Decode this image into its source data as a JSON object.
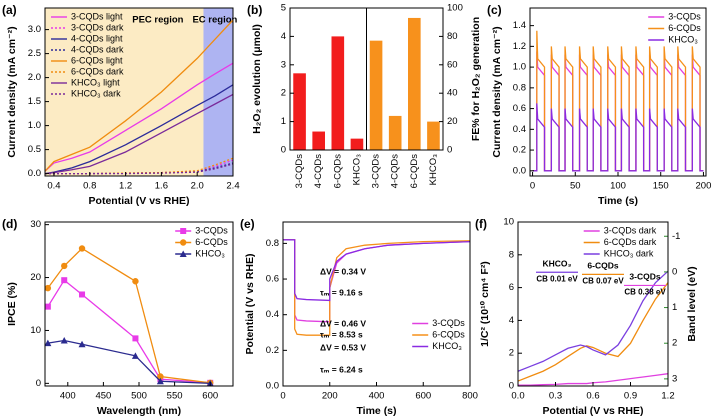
{
  "chart_data": [
    {
      "type": "line",
      "label": "(a)",
      "xlabel": "Potential (V vs RHE)",
      "ylabel": "Current density (mA cm⁻²)",
      "xlim": [
        0.3,
        2.4
      ],
      "ylim": [
        -0.05,
        3.45
      ],
      "xticks": [
        0.4,
        0.8,
        1.2,
        1.6,
        {
          "value": 2,
          "label": "2.0"
        },
        2.4
      ],
      "yticks": [
        {
          "value": 0,
          "label": "0.0"
        },
        0.5,
        {
          "value": 1,
          "label": "1.0"
        },
        1.5,
        {
          "value": 2,
          "label": "2.0"
        },
        2.5,
        {
          "value": 3,
          "label": "3.0"
        }
      ],
      "regions": [
        {
          "label": "PEC region",
          "x": [
            0.3,
            2.07
          ],
          "color": "#fcebc4",
          "text_color": "#e8392a"
        },
        {
          "label": "EC region",
          "x": [
            2.07,
            2.4
          ],
          "color": "#aeb4f2",
          "text_color": "#3a3aa0"
        }
      ],
      "legend": "upper left",
      "x": [
        0.3,
        0.4,
        0.6,
        0.8,
        1.2,
        1.6,
        2.0,
        2.2,
        2.4
      ],
      "series": [
        {
          "name": "3-CQDs light",
          "color": "#e83ae8",
          "values": [
            0.05,
            0.22,
            0.32,
            0.45,
            0.9,
            1.35,
            1.85,
            2.08,
            2.3
          ]
        },
        {
          "name": "3-CQDs dark",
          "color": "#e83ae8",
          "style": "dotted",
          "values": [
            0,
            0,
            0,
            0,
            0.01,
            0.02,
            0.05,
            0.15,
            0.28
          ]
        },
        {
          "name": "4-CQDs light",
          "color": "#2b2b9a",
          "values": [
            0,
            0.03,
            0.12,
            0.25,
            0.6,
            1.0,
            1.42,
            1.62,
            1.85
          ]
        },
        {
          "name": "4-CQDs dark",
          "color": "#2b2b9a",
          "style": "dotted",
          "values": [
            0,
            0,
            0,
            0,
            0.01,
            0.02,
            0.04,
            0.12,
            0.22
          ]
        },
        {
          "name": "6-CQDs light",
          "color": "#f08c10",
          "values": [
            0.05,
            0.25,
            0.4,
            0.55,
            1.1,
            1.7,
            2.4,
            2.8,
            3.2
          ]
        },
        {
          "name": "6-CQDs dark",
          "color": "#f08c10",
          "style": "dotted",
          "values": [
            0,
            0,
            0,
            0,
            0.01,
            0.02,
            0.06,
            0.18,
            0.32
          ]
        },
        {
          "name": "KHCO₃ light",
          "color": "#7a2a9a",
          "values": [
            0,
            0.02,
            0.08,
            0.15,
            0.45,
            0.85,
            1.25,
            1.45,
            1.65
          ]
        },
        {
          "name": "KHCO₃ dark",
          "color": "#7a2a9a",
          "style": "dotted",
          "values": [
            0,
            0,
            0,
            0,
            0,
            0.01,
            0.03,
            0.1,
            0.2
          ]
        }
      ]
    },
    {
      "type": "bar",
      "label": "(b)",
      "ylabel": "H₂O₂ evolution (μmol)",
      "y2label": "FE% for H₂O₂ generation",
      "categories": [
        "3-CQDs",
        "4-CQDs",
        "6-CQDs",
        "KHCO₃",
        "3-CQDs",
        "4-CQDs",
        "6-CQDs",
        "KHCO₃"
      ],
      "ylim": [
        0,
        5
      ],
      "yticks": [
        0,
        1,
        2,
        3,
        4,
        5
      ],
      "y2lim": [
        0,
        100
      ],
      "y2ticks": [
        0,
        20,
        40,
        60,
        80,
        100
      ],
      "series": [
        {
          "color": "#f21d1d",
          "values": [
            2.7,
            0.65,
            4.0,
            0.4,
            null,
            null,
            null,
            null
          ]
        },
        {
          "color": "#f7911c",
          "axis": "y2",
          "values": [
            null,
            null,
            null,
            null,
            77,
            24,
            93,
            20
          ]
        }
      ]
    },
    {
      "type": "line",
      "label": "(c)",
      "xlabel": "Time (s)",
      "ylabel": "Current density (mA cm⁻²)",
      "xlim": [
        -3,
        203
      ],
      "ylim": [
        -0.05,
        1.57
      ],
      "xticks": [
        0,
        50,
        100,
        150,
        200
      ],
      "yticks": [
        {
          "value": 0,
          "label": "0.0"
        },
        0.2,
        0.4,
        0.6,
        0.8,
        {
          "value": 1,
          "label": "1.0"
        },
        1.2,
        1.4
      ],
      "legend": "upper right",
      "x": [
        0,
        5,
        5,
        6,
        14,
        14,
        22,
        22,
        23,
        31,
        31,
        38,
        38,
        39,
        47,
        47,
        55,
        55,
        56,
        64,
        64,
        71,
        71,
        72,
        80,
        80,
        88,
        88,
        89,
        97,
        97,
        104,
        104,
        105,
        113,
        113,
        121,
        121,
        122,
        130,
        130,
        137,
        137,
        138,
        146,
        146,
        154,
        154,
        155,
        163,
        163,
        170,
        170,
        171,
        179,
        179,
        187,
        187,
        188,
        196,
        196,
        200
      ],
      "series": [
        {
          "name": "3-CQDs",
          "color": "#e040e0",
          "values": [
            0,
            0,
            1.15,
            1.0,
            0.92,
            0,
            0,
            1.12,
            1.0,
            0.92,
            0,
            0,
            1.12,
            1.0,
            0.92,
            0,
            0,
            1.12,
            1.0,
            0.92,
            0,
            0,
            1.12,
            1.0,
            0.92,
            0,
            0,
            1.12,
            1.0,
            0.92,
            0,
            0,
            1.12,
            1.0,
            0.92,
            0,
            0,
            1.12,
            1.0,
            0.92,
            0,
            0,
            1.12,
            1.0,
            0.92,
            0,
            0,
            1.12,
            1.0,
            0.92,
            0,
            0,
            1.12,
            1.0,
            0.92,
            0,
            0,
            1.12,
            1.0,
            0.92,
            0,
            0
          ]
        },
        {
          "name": "6-CQDs",
          "color": "#f5901a",
          "values": [
            0,
            0,
            1.35,
            1.08,
            1.0,
            0,
            0,
            1.2,
            1.08,
            1.0,
            0,
            0,
            1.2,
            1.08,
            1.0,
            0,
            0,
            1.2,
            1.08,
            1.0,
            0,
            0,
            1.2,
            1.08,
            1.0,
            0,
            0,
            1.2,
            1.08,
            1.0,
            0,
            0,
            1.2,
            1.08,
            1.0,
            0,
            0,
            1.2,
            1.08,
            1.0,
            0,
            0,
            1.2,
            1.08,
            1.0,
            0,
            0,
            1.2,
            1.08,
            1.0,
            0,
            0,
            1.2,
            1.08,
            1.0,
            0,
            0,
            1.2,
            1.08,
            1.0,
            0,
            0
          ]
        },
        {
          "name": "KHCO₃",
          "color": "#8a2be2",
          "values": [
            0,
            0,
            0.65,
            0.5,
            0.42,
            0,
            0,
            0.6,
            0.5,
            0.42,
            0,
            0,
            0.6,
            0.5,
            0.42,
            0,
            0,
            0.6,
            0.5,
            0.42,
            0,
            0,
            0.6,
            0.5,
            0.42,
            0,
            0,
            0.6,
            0.5,
            0.42,
            0,
            0,
            0.6,
            0.5,
            0.42,
            0,
            0,
            0.6,
            0.5,
            0.42,
            0,
            0,
            0.6,
            0.5,
            0.42,
            0,
            0,
            0.6,
            0.5,
            0.42,
            0,
            0,
            0.6,
            0.5,
            0.42,
            0,
            0,
            0.6,
            0.5,
            0.42,
            0,
            0
          ]
        }
      ]
    },
    {
      "type": "line",
      "label": "(d)",
      "xlabel": "Wavelength (nm)",
      "ylabel": "IPCE (%)",
      "xlim": [
        368,
        632
      ],
      "ylim": [
        -0.5,
        30.5
      ],
      "xticks": [
        400,
        450,
        500,
        550,
        600
      ],
      "yticks": [
        0,
        10,
        20,
        30
      ],
      "legend": "upper right",
      "x": [
        372,
        395,
        420,
        495,
        530,
        600
      ],
      "series": [
        {
          "name": "3-CQDs",
          "color": "#e83ae8",
          "marker": "square",
          "values": [
            14.5,
            19.5,
            16.8,
            8.5,
            0.8,
            0.1
          ]
        },
        {
          "name": "6-CQDs",
          "color": "#f08c10",
          "marker": "circle",
          "values": [
            18,
            22.2,
            25.5,
            19.3,
            1.3,
            0.1
          ]
        },
        {
          "name": "KHCO₃",
          "color": "#2b2b8f",
          "marker": "triangle",
          "values": [
            7.6,
            8.1,
            7.4,
            5.2,
            0.4,
            0
          ]
        }
      ]
    },
    {
      "type": "line",
      "label": "(e)",
      "xlabel": "Time (s)",
      "ylabel": "Potential (V vs RHE)",
      "xlim": [
        0,
        800
      ],
      "ylim": [
        0,
        0.92
      ],
      "xticks": [
        0,
        200,
        400,
        600,
        800
      ],
      "yticks": [
        {
          "value": 0,
          "label": "0.0"
        },
        0.2,
        0.4,
        0.6,
        0.8
      ],
      "legend": "lower right",
      "x": [
        0,
        50,
        50,
        60,
        100,
        200,
        200,
        230,
        270,
        350,
        450,
        600,
        800
      ],
      "series": [
        {
          "name": "3-CQDs",
          "color": "#e040e0",
          "values": [
            0.82,
            0.82,
            0.4,
            0.37,
            0.365,
            0.36,
            0.55,
            0.69,
            0.74,
            0.77,
            0.79,
            0.8,
            0.81
          ]
        },
        {
          "name": "6-CQDs",
          "color": "#f5901a",
          "values": [
            0.82,
            0.82,
            0.32,
            0.29,
            0.285,
            0.285,
            0.55,
            0.72,
            0.77,
            0.79,
            0.8,
            0.81,
            0.815
          ]
        },
        {
          "name": "KHCO₃",
          "color": "#8a2be2",
          "values": [
            0.82,
            0.82,
            0.52,
            0.49,
            0.485,
            0.48,
            0.6,
            0.7,
            0.74,
            0.77,
            0.79,
            0.8,
            0.81
          ]
        }
      ],
      "annotations": [
        {
          "text": "ΔV = 0.34 V",
          "color": "#8a2be2"
        },
        {
          "text": "τₘ = 9.16 s",
          "color": "#8a2be2"
        },
        {
          "text": "ΔV = 0.46 V",
          "color": "#e040e0"
        },
        {
          "text": "τₘ = 8.53 s",
          "color": "#e040e0"
        },
        {
          "text": "ΔV = 0.53 V",
          "color": "#f5901a"
        },
        {
          "text": "τₘ = 6.24 s",
          "color": "#f5901a"
        }
      ]
    },
    {
      "type": "line",
      "label": "(f)",
      "xlabel": "Potential (V vs RHE)",
      "ylabel": "1/C² (10¹⁰ cm⁴ F²)",
      "y2label": "Band level (eV)",
      "y2color": "#2e8b2e",
      "xlim": [
        0,
        1.2
      ],
      "ylim": [
        0,
        10
      ],
      "y2lim": [
        3.2,
        -1.4
      ],
      "xticks": [
        {
          "value": 0,
          "label": "0.0"
        },
        0.3,
        0.6,
        0.9,
        1.2
      ],
      "yticks": [
        0,
        2,
        4,
        6,
        8,
        10
      ],
      "y2ticks": [
        -1,
        0,
        1,
        2,
        3
      ],
      "legend": "upper right",
      "x": [
        0,
        0.1,
        0.2,
        0.3,
        0.4,
        0.5,
        0.55,
        0.6,
        0.7,
        0.8,
        0.9,
        1.0,
        1.1,
        1.2
      ],
      "series": [
        {
          "name": "3-CQDs dark",
          "color": "#e040e0",
          "values": [
            0.05,
            0.05,
            0.08,
            0.1,
            0.15,
            0.15,
            0.15,
            0.2,
            0.25,
            0.35,
            0.45,
            0.55,
            0.65,
            0.75
          ]
        },
        {
          "name": "6-CQDs dark",
          "color": "#f08c10",
          "values": [
            0.3,
            0.6,
            0.9,
            1.3,
            1.8,
            2.3,
            2.45,
            2.35,
            2.0,
            1.8,
            2.6,
            4.0,
            5.3,
            6.3
          ]
        },
        {
          "name": "KHCO₃ dark",
          "color": "#7a3fe0",
          "values": [
            0.9,
            1.2,
            1.5,
            1.9,
            2.3,
            2.5,
            2.4,
            2.2,
            1.9,
            2.5,
            3.7,
            5.2,
            6.3,
            7.0
          ]
        }
      ],
      "cb_annotations": [
        {
          "label": "KHCO₃",
          "cb_label": "CB 0.01 eV",
          "cb": 0.01,
          "color": "#7a3fe0"
        },
        {
          "label": "6-CQDs",
          "cb_label": "CB 0.07 eV",
          "cb": 0.07,
          "color": "#f08c10"
        },
        {
          "label": "3-CQDs",
          "cb_label": "CB 0.38 eV",
          "cb": 0.38,
          "color": "#e040e0"
        }
      ]
    }
  ]
}
